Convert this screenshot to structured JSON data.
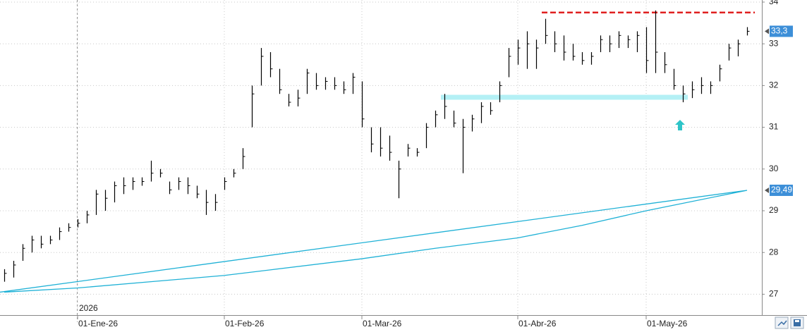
{
  "chart_data": {
    "type": "ohlc",
    "color": "#000000",
    "categories": [
      null,
      null,
      null,
      null,
      null,
      null,
      null,
      null,
      "01-Ene-26",
      null,
      null,
      null,
      null,
      null,
      null,
      null,
      null,
      null,
      null,
      null,
      null,
      null,
      null,
      null,
      "01-Feb-26",
      null,
      null,
      null,
      null,
      null,
      null,
      null,
      null,
      null,
      null,
      null,
      null,
      null,
      null,
      "01-Mar-26",
      null,
      null,
      null,
      null,
      null,
      null,
      null,
      null,
      null,
      null,
      null,
      null,
      null,
      null,
      null,
      null,
      "01-Abr-26",
      null,
      null,
      null,
      null,
      null,
      null,
      null,
      null,
      null,
      null,
      null,
      null,
      null,
      "01-May-26",
      null,
      null,
      null,
      null,
      null,
      null,
      null,
      null,
      null,
      null,
      null
    ],
    "high": [
      27.6,
      27.8,
      28.2,
      28.4,
      28.4,
      28.4,
      28.6,
      28.7,
      28.8,
      29.0,
      29.5,
      29.5,
      29.7,
      29.8,
      29.8,
      29.8,
      30.2,
      30.0,
      29.7,
      29.8,
      29.8,
      29.6,
      29.5,
      29.4,
      29.8,
      30.0,
      30.5,
      32.0,
      32.9,
      32.8,
      32.4,
      31.8,
      31.9,
      32.4,
      32.3,
      32.2,
      32.2,
      32.1,
      32.3,
      32.1,
      31.0,
      31.0,
      30.8,
      30.2,
      30.6,
      30.5,
      31.1,
      31.4,
      31.8,
      31.4,
      31.2,
      31.3,
      31.6,
      31.6,
      32.1,
      32.9,
      33.1,
      33.3,
      33.1,
      33.6,
      33.3,
      33.2,
      33.0,
      32.8,
      32.8,
      33.2,
      33.2,
      33.3,
      33.2,
      33.3,
      33.4,
      33.8,
      32.8,
      32.4,
      32.0,
      32.1,
      32.2,
      32.1,
      32.5,
      33.0,
      33.1,
      33.4
    ],
    "low": [
      27.3,
      27.4,
      27.8,
      28.0,
      28.1,
      28.2,
      28.3,
      28.5,
      28.6,
      28.7,
      28.9,
      29.0,
      29.2,
      29.4,
      29.5,
      29.6,
      29.7,
      29.8,
      29.4,
      29.5,
      29.4,
      29.3,
      28.9,
      29.0,
      29.5,
      29.8,
      30.0,
      31.0,
      32.0,
      32.2,
      31.8,
      31.5,
      31.5,
      31.8,
      31.9,
      31.9,
      31.9,
      31.8,
      31.8,
      31.0,
      30.4,
      30.3,
      30.2,
      29.3,
      30.3,
      30.3,
      30.5,
      31.0,
      31.2,
      31.0,
      29.9,
      30.9,
      31.1,
      31.3,
      31.6,
      32.2,
      32.5,
      32.4,
      32.4,
      33.0,
      32.8,
      32.6,
      32.6,
      32.5,
      32.5,
      32.8,
      32.8,
      32.9,
      32.9,
      32.8,
      32.3,
      32.3,
      32.3,
      31.9,
      31.6,
      31.7,
      31.8,
      31.8,
      32.1,
      32.6,
      32.7,
      33.2
    ],
    "close": [
      27.5,
      27.7,
      28.1,
      28.3,
      28.2,
      28.3,
      28.5,
      28.6,
      28.7,
      28.9,
      29.4,
      29.3,
      29.6,
      29.6,
      29.7,
      29.7,
      29.9,
      29.9,
      29.5,
      29.7,
      29.6,
      29.4,
      29.2,
      29.2,
      29.7,
      29.9,
      30.3,
      31.8,
      32.7,
      32.4,
      31.9,
      31.6,
      31.7,
      32.3,
      32.0,
      32.1,
      32.0,
      31.9,
      32.2,
      31.2,
      30.6,
      30.5,
      30.4,
      30.0,
      30.5,
      30.4,
      31.0,
      31.3,
      31.5,
      31.1,
      31.0,
      31.2,
      31.5,
      31.4,
      32.0,
      32.7,
      32.9,
      33.0,
      32.9,
      33.2,
      33.0,
      32.8,
      32.7,
      32.6,
      32.7,
      33.1,
      33.0,
      33.2,
      33.1,
      33.2,
      32.6,
      32.8,
      32.5,
      32.0,
      31.8,
      31.9,
      32.0,
      32.0,
      32.4,
      32.9,
      33.0,
      33.3
    ],
    "ma": {
      "color": "#1fb1d6",
      "x": [
        0,
        8,
        16,
        24,
        39,
        47,
        56,
        63,
        70,
        81
      ],
      "values": [
        27.05,
        27.15,
        27.3,
        27.45,
        27.85,
        28.1,
        28.35,
        28.65,
        29.0,
        29.49
      ]
    },
    "last_price": {
      "value": 33.3,
      "label": "33,3"
    },
    "ma_label": {
      "value": 29.49,
      "label": "29,49"
    },
    "resistance": {
      "value": 33.75,
      "color": "#e02020"
    },
    "support": {
      "value": 31.72,
      "color": "#b4f0f5"
    },
    "year_label": "2026",
    "ylim": [
      26.5,
      34.05
    ],
    "yticks": [
      27,
      28,
      29,
      30,
      31,
      32,
      33,
      34
    ],
    "grid": true
  }
}
